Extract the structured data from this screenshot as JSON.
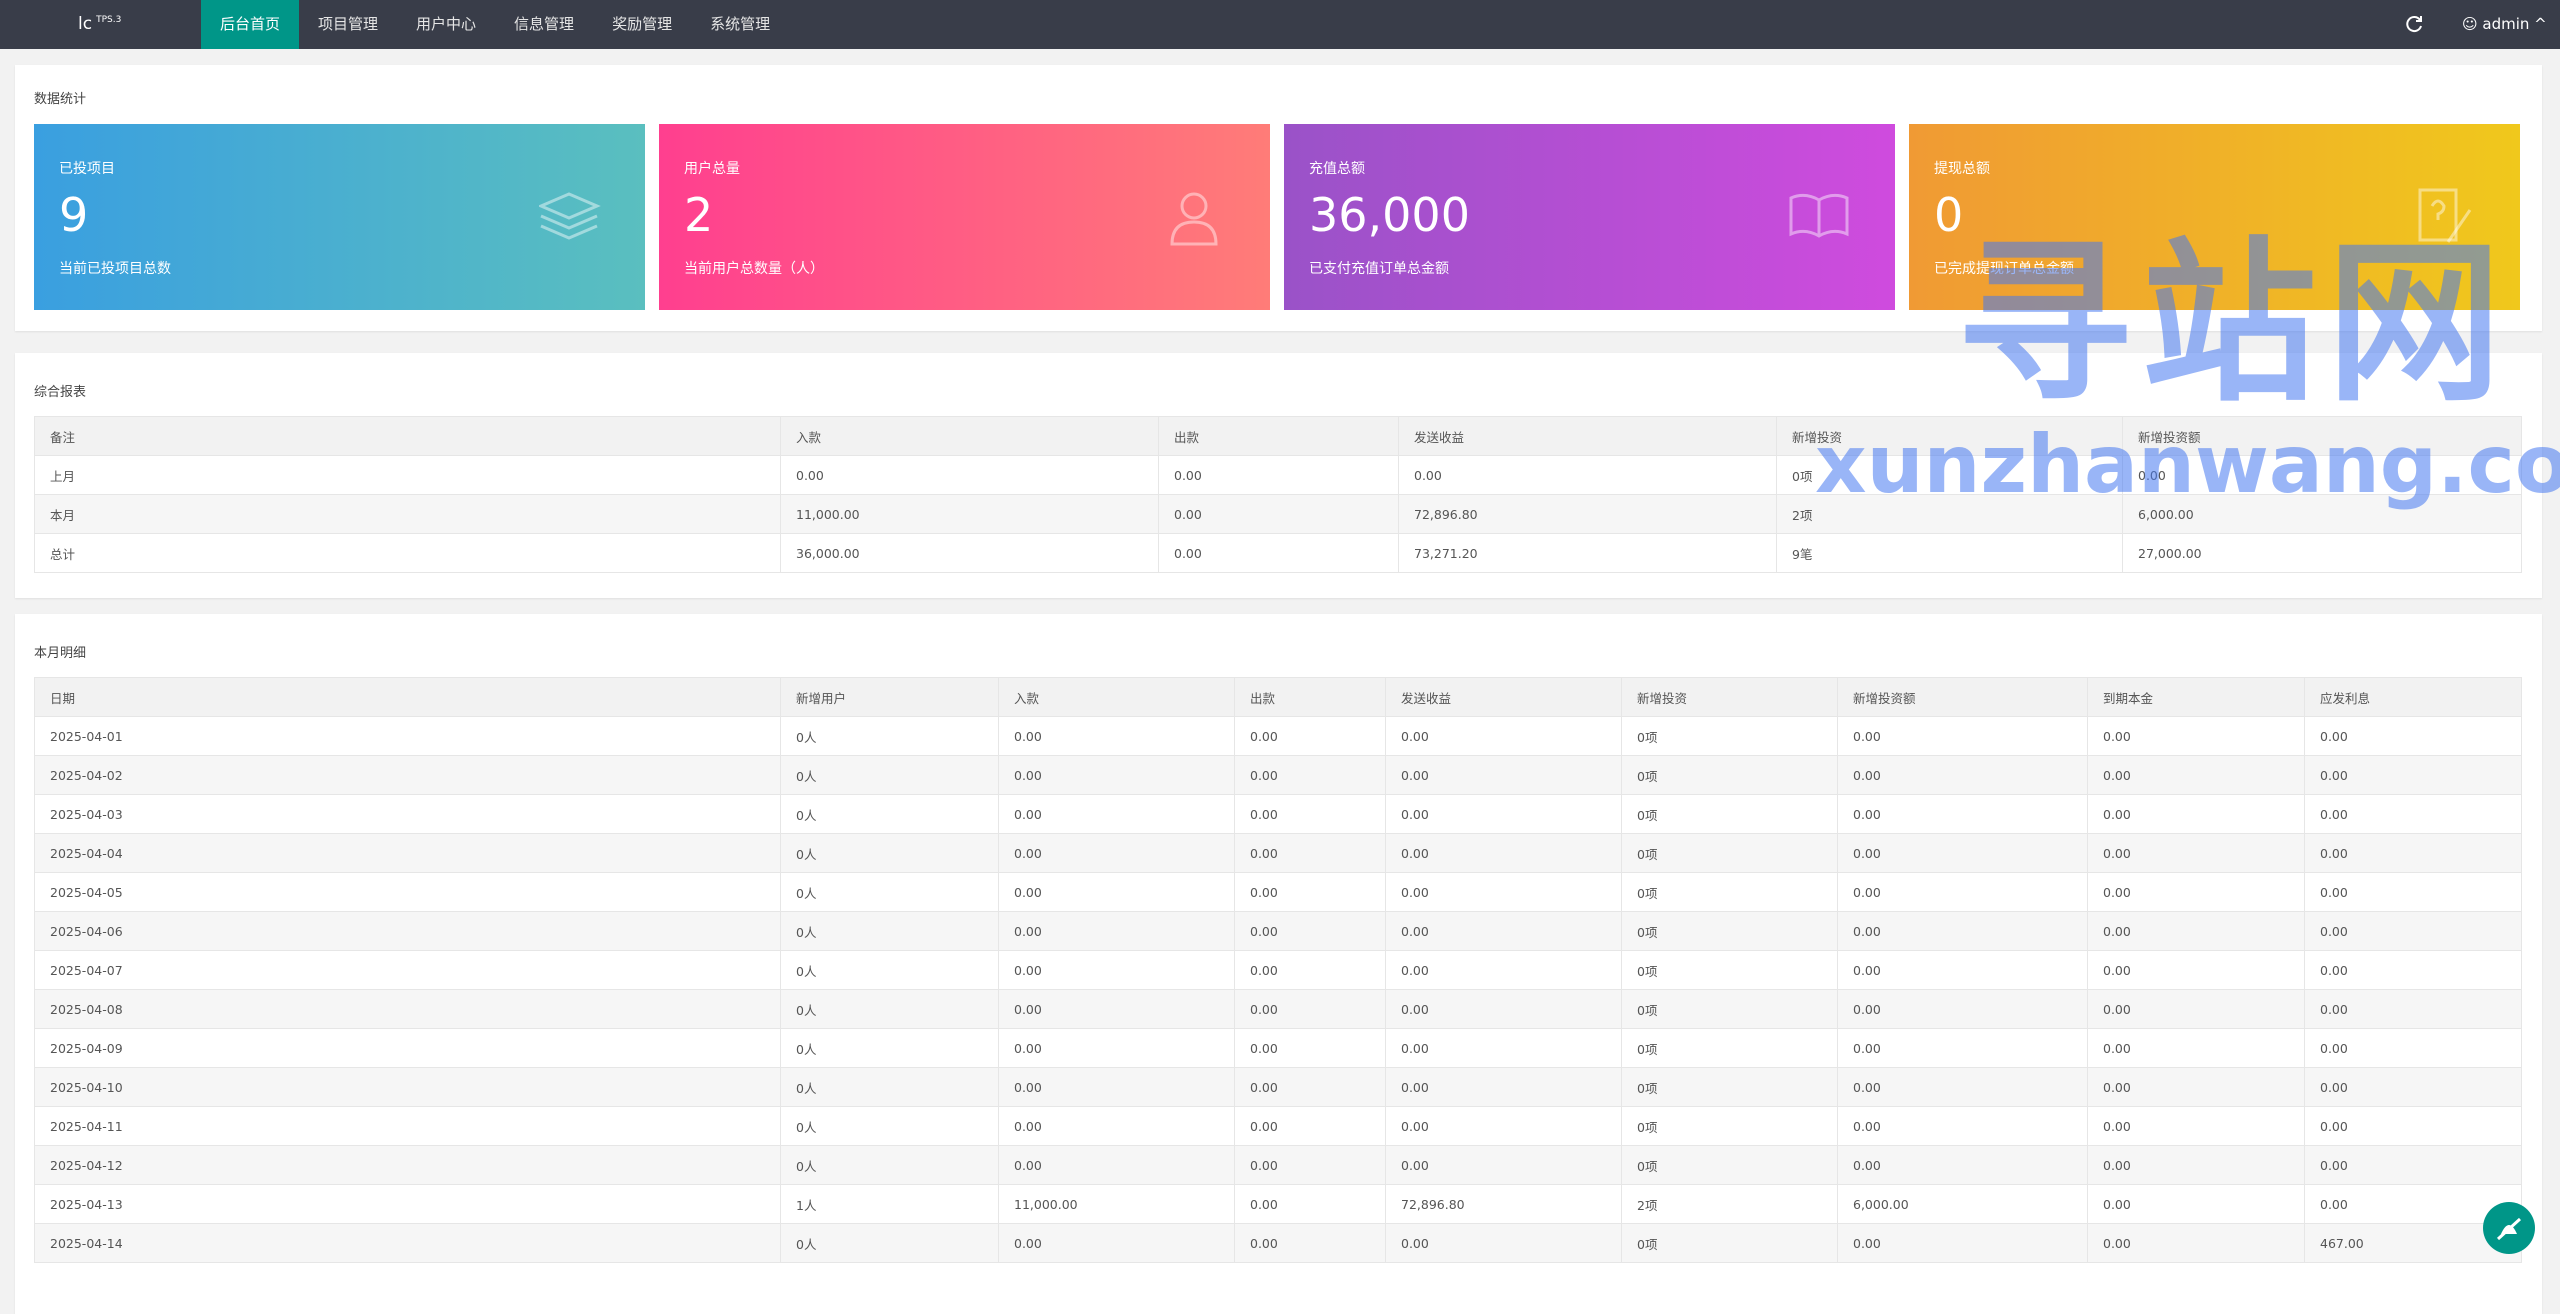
{
  "nav": {
    "logo": "lc",
    "logo_sup": "TPS.3",
    "items": [
      "后台首页",
      "项目管理",
      "用户中心",
      "信息管理",
      "奖励管理",
      "系统管理"
    ],
    "user": "admin"
  },
  "stats": {
    "title": "数据统计",
    "cards": [
      {
        "label": "已投项目",
        "value": "9",
        "note": "当前已投项目总数"
      },
      {
        "label": "用户总量",
        "value": "2",
        "note": "当前用户总数量（人）"
      },
      {
        "label": "充值总额",
        "value": "36,000",
        "note": "已支付充值订单总金额"
      },
      {
        "label": "提现总额",
        "value": "0",
        "note": "已完成提现订单总金额"
      }
    ]
  },
  "report": {
    "title": "综合报表",
    "columns": [
      "备注",
      "入款",
      "出款",
      "发送收益",
      "新增投资",
      "新增投资额"
    ],
    "rows": [
      [
        "上月",
        "0.00",
        "0.00",
        "0.00",
        "0项",
        "0.00"
      ],
      [
        "本月",
        "11,000.00",
        "0.00",
        "72,896.80",
        "2项",
        "6,000.00"
      ],
      [
        "总计",
        "36,000.00",
        "0.00",
        "73,271.20",
        "9笔",
        "27,000.00"
      ]
    ]
  },
  "monthly": {
    "title": "本月明细",
    "columns": [
      "日期",
      "新增用户",
      "入款",
      "出款",
      "发送收益",
      "新增投资",
      "新增投资额",
      "到期本金",
      "应发利息"
    ],
    "rows": [
      [
        "2025-04-01",
        "0人",
        "0.00",
        "0.00",
        "0.00",
        "0项",
        "0.00",
        "0.00",
        "0.00"
      ],
      [
        "2025-04-02",
        "0人",
        "0.00",
        "0.00",
        "0.00",
        "0项",
        "0.00",
        "0.00",
        "0.00"
      ],
      [
        "2025-04-03",
        "0人",
        "0.00",
        "0.00",
        "0.00",
        "0项",
        "0.00",
        "0.00",
        "0.00"
      ],
      [
        "2025-04-04",
        "0人",
        "0.00",
        "0.00",
        "0.00",
        "0项",
        "0.00",
        "0.00",
        "0.00"
      ],
      [
        "2025-04-05",
        "0人",
        "0.00",
        "0.00",
        "0.00",
        "0项",
        "0.00",
        "0.00",
        "0.00"
      ],
      [
        "2025-04-06",
        "0人",
        "0.00",
        "0.00",
        "0.00",
        "0项",
        "0.00",
        "0.00",
        "0.00"
      ],
      [
        "2025-04-07",
        "0人",
        "0.00",
        "0.00",
        "0.00",
        "0项",
        "0.00",
        "0.00",
        "0.00"
      ],
      [
        "2025-04-08",
        "0人",
        "0.00",
        "0.00",
        "0.00",
        "0项",
        "0.00",
        "0.00",
        "0.00"
      ],
      [
        "2025-04-09",
        "0人",
        "0.00",
        "0.00",
        "0.00",
        "0项",
        "0.00",
        "0.00",
        "0.00"
      ],
      [
        "2025-04-10",
        "0人",
        "0.00",
        "0.00",
        "0.00",
        "0项",
        "0.00",
        "0.00",
        "0.00"
      ],
      [
        "2025-04-11",
        "0人",
        "0.00",
        "0.00",
        "0.00",
        "0项",
        "0.00",
        "0.00",
        "0.00"
      ],
      [
        "2025-04-12",
        "0人",
        "0.00",
        "0.00",
        "0.00",
        "0项",
        "0.00",
        "0.00",
        "0.00"
      ],
      [
        "2025-04-13",
        "1人",
        "11,000.00",
        "0.00",
        "72,896.80",
        "2项",
        "6,000.00",
        "0.00",
        "0.00"
      ],
      [
        "2025-04-14",
        "0人",
        "0.00",
        "0.00",
        "0.00",
        "0项",
        "0.00",
        "0.00",
        "467.00"
      ]
    ]
  },
  "watermark": {
    "title": "寻站网",
    "url": "xunzhanwang.com"
  }
}
